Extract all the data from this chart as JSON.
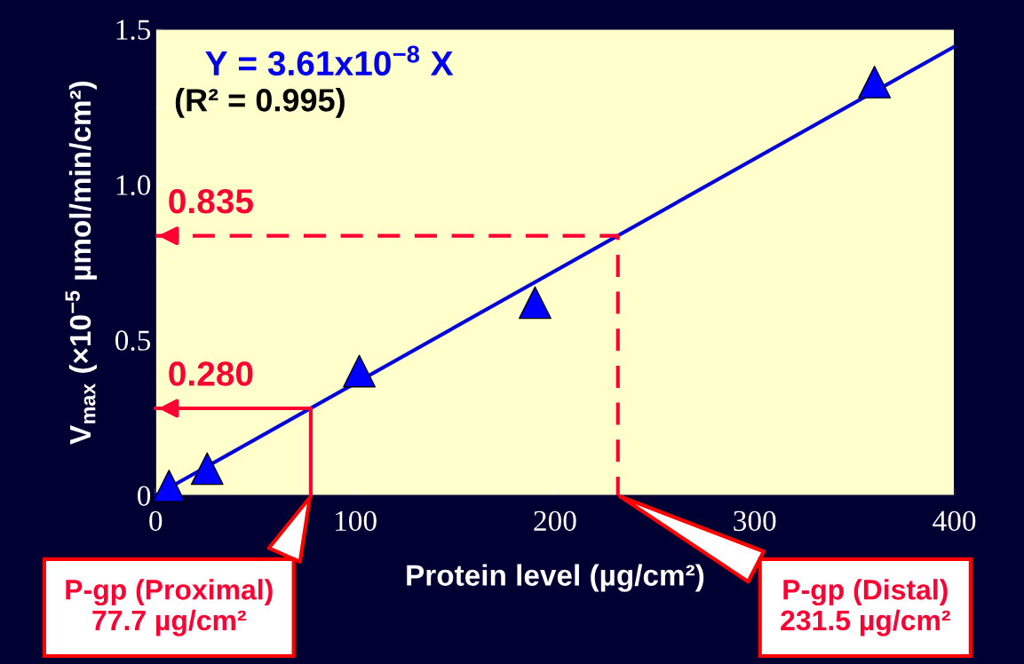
{
  "chart_data": {
    "type": "scatter",
    "xlabel": "Protein level (µg/cm²)",
    "ylabel": "V$_{max}$ (×10$^{−5}$ µmol/min/cm²)",
    "xlim": [
      0,
      400
    ],
    "xticks": [
      0,
      100,
      200,
      300,
      400
    ],
    "ylim": [
      0,
      1.5
    ],
    "yticks": [
      {
        "value": 0,
        "label": "0"
      },
      {
        "value": 0.25,
        "label": null
      },
      {
        "value": 0.5,
        "label": "0.5"
      },
      {
        "value": 0.75,
        "label": null
      },
      {
        "value": 1.0,
        "label": "1.0"
      },
      {
        "value": 1.25,
        "label": null
      },
      {
        "value": 1.5,
        "label": "1.5"
      }
    ],
    "grid": false,
    "marker": "triangle",
    "series": [
      {
        "type": "line",
        "color": "#0000dd",
        "x": [
          0,
          400
        ],
        "values": [
          0,
          1.444
        ],
        "marker": "none",
        "line_style": "solid"
      },
      {
        "color": "#0000ff",
        "x": [
          6.7,
          25.8,
          102,
          190,
          360
        ],
        "values": [
          0.03,
          0.086,
          0.4,
          0.62,
          1.33
        ]
      },
      {
        "type": "line",
        "color": "#ff0033",
        "x": [
          0,
          231.5,
          231.5
        ],
        "values": [
          0.835,
          0.835,
          0
        ],
        "marker": "none",
        "line_style": "dashed"
      },
      {
        "type": "line",
        "color": "#ff0033",
        "x": [
          0,
          77.7,
          77.7
        ],
        "values": [
          0.28,
          0.28,
          0
        ],
        "marker": "none",
        "line_style": "solid"
      }
    ],
    "annotations": [
      "Y = 3.61x10$^{−8}$ X",
      "(R² = 0.995)",
      {
        "text": "0.835",
        "x": 0,
        "y": 0.835
      },
      {
        "text": "0.280",
        "x": 0,
        "y": 0.28
      },
      "P-gp (Proximal)\n77.7 µg/cm²",
      "P-gp (Distal)\n231.5 µg/cm²"
    ]
  }
}
